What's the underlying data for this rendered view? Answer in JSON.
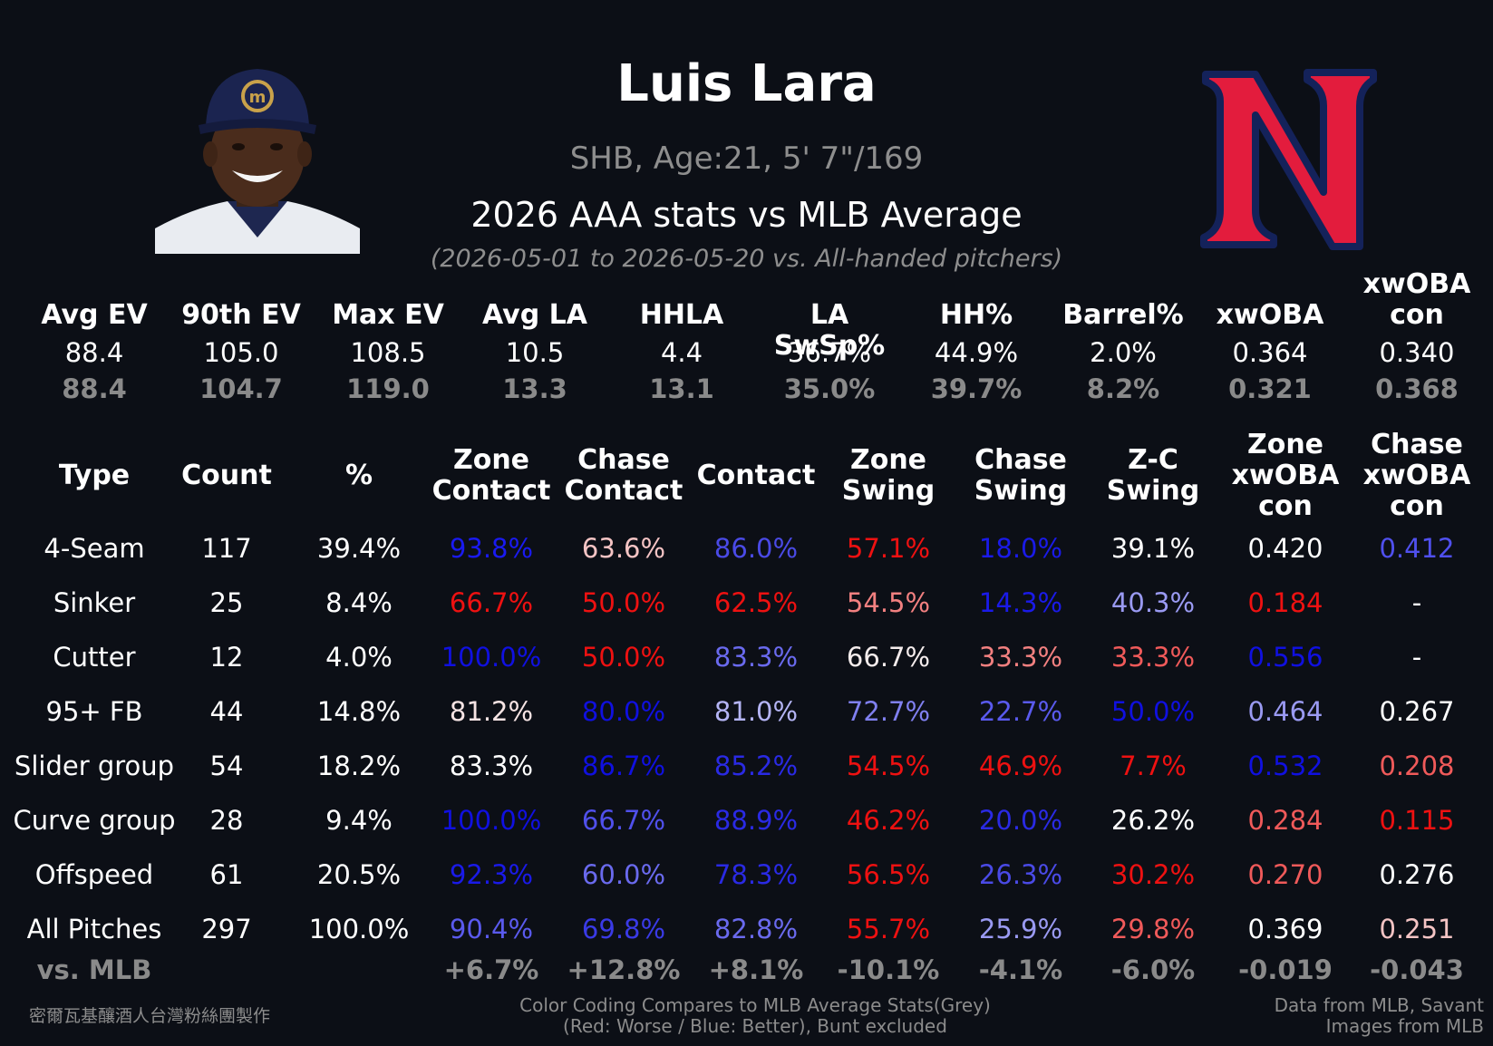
{
  "header": {
    "name": "Luis Lara",
    "info": "SHB, Age:21, 5' 7\"/169",
    "title": "2026 AAA stats vs MLB Average",
    "date_range": "(2026-05-01 to 2026-05-20 vs. All-handed pitchers)"
  },
  "batted": {
    "headers": [
      "Avg EV",
      "90th EV",
      "Max EV",
      "Avg LA",
      "HHLA",
      "LA SwSp%",
      "HH%",
      "Barrel%",
      "xwOBA",
      "xwOBA\ncon"
    ],
    "values": [
      "88.4",
      "105.0",
      "108.5",
      "10.5",
      "4.4",
      "36.7%",
      "44.9%",
      "2.0%",
      "0.364",
      "0.340"
    ],
    "mlb": [
      "88.4",
      "104.7",
      "119.0",
      "13.3",
      "13.1",
      "35.0%",
      "39.7%",
      "8.2%",
      "0.321",
      "0.368"
    ]
  },
  "pitch_table": {
    "headers": [
      "Type",
      "Count",
      "%",
      "Zone\nContact",
      "Chase\nContact",
      "Contact",
      "Zone\nSwing",
      "Chase\nSwing",
      "Z-C\nSwing",
      "Zone\nxwOBA\ncon",
      "Chase\nxwOBA\ncon"
    ],
    "rows": [
      {
        "cells": [
          "4-Seam",
          "117",
          "39.4%",
          "93.8%",
          "63.6%",
          "86.0%",
          "57.1%",
          "18.0%",
          "39.1%",
          "0.420",
          "0.412"
        ],
        "colors": [
          "#ffffff",
          "#ffffff",
          "#ffffff",
          "#1a1af0",
          "#f5c4c4",
          "#4a4ae6",
          "#ee1111",
          "#1a1ae8",
          "#ffffff",
          "#ffffff",
          "#5050ee"
        ]
      },
      {
        "cells": [
          "Sinker",
          "25",
          "8.4%",
          "66.7%",
          "50.0%",
          "62.5%",
          "54.5%",
          "14.3%",
          "40.3%",
          "0.184",
          "-"
        ],
        "colors": [
          "#ffffff",
          "#ffffff",
          "#ffffff",
          "#ee1111",
          "#ee1111",
          "#ee1111",
          "#f28080",
          "#1a1ae8",
          "#9a9af2",
          "#ee1111",
          "#ffffff"
        ]
      },
      {
        "cells": [
          "Cutter",
          "12",
          "4.0%",
          "100.0%",
          "50.0%",
          "83.3%",
          "66.7%",
          "33.3%",
          "33.3%",
          "0.556",
          "-"
        ],
        "colors": [
          "#ffffff",
          "#ffffff",
          "#ffffff",
          "#1010e0",
          "#ee1111",
          "#6a6aee",
          "#f4ecec",
          "#f28080",
          "#f05a5a",
          "#1010e0",
          "#ffffff"
        ]
      },
      {
        "cells": [
          "95+ FB",
          "44",
          "14.8%",
          "81.2%",
          "80.0%",
          "81.0%",
          "72.7%",
          "22.7%",
          "50.0%",
          "0.464",
          "0.267"
        ],
        "colors": [
          "#ffffff",
          "#ffffff",
          "#ffffff",
          "#f6e4e4",
          "#1010e0",
          "#b4b4f4",
          "#8080f0",
          "#5a5aee",
          "#1010e0",
          "#9a9af2",
          "#ffffff"
        ]
      },
      {
        "cells": [
          "Slider group",
          "54",
          "18.2%",
          "83.3%",
          "86.7%",
          "85.2%",
          "54.5%",
          "46.9%",
          "7.7%",
          "0.532",
          "0.208"
        ],
        "colors": [
          "#ffffff",
          "#ffffff",
          "#ffffff",
          "#ffffff",
          "#1010e0",
          "#2a2ae4",
          "#ee1111",
          "#ee1111",
          "#ee1111",
          "#1010e0",
          "#f05a5a"
        ]
      },
      {
        "cells": [
          "Curve group",
          "28",
          "9.4%",
          "100.0%",
          "66.7%",
          "88.9%",
          "46.2%",
          "20.0%",
          "26.2%",
          "0.284",
          "0.115"
        ],
        "colors": [
          "#ffffff",
          "#ffffff",
          "#ffffff",
          "#1010e0",
          "#5050ec",
          "#2a2ae4",
          "#ee1111",
          "#2a2ae4",
          "#ffffff",
          "#f05a5a",
          "#ee1111"
        ]
      },
      {
        "cells": [
          "Offspeed",
          "61",
          "20.5%",
          "92.3%",
          "60.0%",
          "78.3%",
          "56.5%",
          "26.3%",
          "30.2%",
          "0.270",
          "0.276"
        ],
        "colors": [
          "#ffffff",
          "#ffffff",
          "#ffffff",
          "#1a1ae8",
          "#6a6aee",
          "#2a2ae4",
          "#ee1111",
          "#4a4ae6",
          "#ee1111",
          "#f05a5a",
          "#ffffff"
        ]
      },
      {
        "cells": [
          "All Pitches",
          "297",
          "100.0%",
          "90.4%",
          "69.8%",
          "82.8%",
          "55.7%",
          "25.9%",
          "29.8%",
          "0.369",
          "0.251"
        ],
        "colors": [
          "#ffffff",
          "#ffffff",
          "#ffffff",
          "#5a5aee",
          "#3a3ae6",
          "#6a6aee",
          "#ee1111",
          "#9a9af2",
          "#f05a5a",
          "#ffffff",
          "#f4c4c4"
        ]
      }
    ],
    "vs_mlb_label": "vs. MLB",
    "vs_mlb": [
      "",
      "",
      "+6.7%",
      "+12.8%",
      "+8.1%",
      "-10.1%",
      "-4.1%",
      "-6.0%",
      "-0.019",
      "-0.043"
    ]
  },
  "footer": {
    "credit": "密爾瓦基釀酒人台灣粉絲團製作",
    "legend_line1": "Color Coding Compares to MLB Average Stats(Grey)",
    "legend_line2": "(Red: Worse / Blue: Better), Bunt excluded",
    "source_line1": "Data from MLB, Savant",
    "source_line2": "Images from MLB"
  },
  "icons": {
    "headshot": "player-headshot-image",
    "logo": "nashville-sounds-n-logo"
  },
  "colors": {
    "background": "#0c0f16",
    "muted": "#8a8a8a",
    "logo_red": "#e31c3d",
    "logo_navy": "#14225a"
  }
}
